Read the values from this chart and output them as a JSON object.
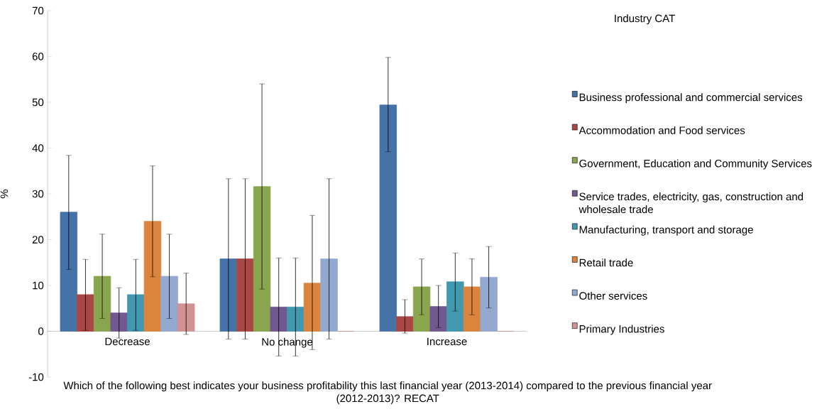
{
  "chart_data": {
    "type": "bar",
    "xlabel": "Which of the following best indicates your business profitability this last financial year (2013-2014) compared to the previous financial year (2012-2013)? RECAT",
    "ylabel": "%",
    "legend_title": "Industry CAT",
    "legend": "right",
    "grid": false,
    "ylim": [
      -10,
      70
    ],
    "yticks": [
      -10,
      0,
      10,
      20,
      30,
      40,
      50,
      60,
      70
    ],
    "categories": [
      "Decrease",
      "No change",
      "Increase"
    ],
    "series": [
      {
        "name": "Business professional and commercial services",
        "color": "#4572a7",
        "values": [
          26,
          15.8,
          49.4
        ],
        "errors": [
          [
            13.5,
            38.4
          ],
          [
            -1.7,
            33.3
          ],
          [
            39.2,
            59.8
          ]
        ]
      },
      {
        "name": "Accommodation and Food services",
        "color": "#aa4643",
        "values": [
          8,
          15.8,
          3.2
        ],
        "errors": [
          [
            0.2,
            15.7
          ],
          [
            -1.7,
            33.3
          ],
          [
            -0.4,
            6.9
          ]
        ]
      },
      {
        "name": "Government, Education and Community Services",
        "color": "#89a54e",
        "values": [
          12,
          31.6,
          9.7
        ],
        "errors": [
          [
            2.8,
            21.2
          ],
          [
            9.2,
            54
          ],
          [
            3.6,
            15.8
          ]
        ]
      },
      {
        "name": "Service trades, electricity, gas, construction and wholesale trade",
        "color": "#71588f",
        "values": [
          4,
          5.3,
          5.4
        ],
        "errors": [
          [
            -1.5,
            9.5
          ],
          [
            -5.4,
            16
          ],
          [
            0.8,
            10
          ]
        ]
      },
      {
        "name": "Manufacturing, transport and storage",
        "color": "#4198af",
        "values": [
          8,
          5.3,
          10.8
        ],
        "errors": [
          [
            0.2,
            15.7
          ],
          [
            -5.4,
            16
          ],
          [
            4.4,
            17.1
          ]
        ]
      },
      {
        "name": "Retail trade",
        "color": "#db843d",
        "values": [
          24,
          10.5,
          9.7
        ],
        "errors": [
          [
            11.9,
            36.1
          ],
          [
            -4,
            25.3
          ],
          [
            3.6,
            15.8
          ]
        ]
      },
      {
        "name": "Other services",
        "color": "#93a9cf",
        "values": [
          12,
          15.8,
          11.8
        ],
        "errors": [
          [
            2.8,
            21.2
          ],
          [
            -1.7,
            33.3
          ],
          [
            5.1,
            18.5
          ]
        ]
      },
      {
        "name": "Primary Industries",
        "color": "#d19392",
        "values": [
          6,
          0,
          0
        ],
        "errors": [
          [
            -0.7,
            12.7
          ],
          null,
          null
        ]
      }
    ]
  }
}
